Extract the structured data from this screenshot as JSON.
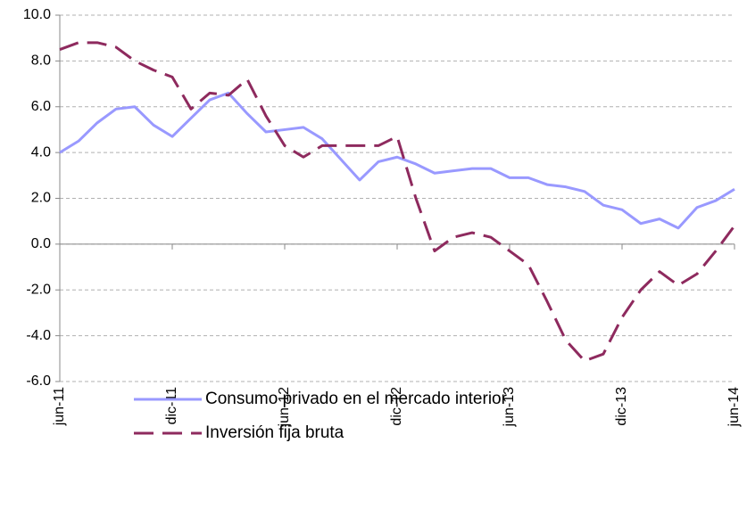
{
  "chart_data": {
    "type": "line",
    "categories": [
      "jun-11",
      null,
      null,
      null,
      null,
      null,
      "dic-11",
      null,
      null,
      null,
      null,
      null,
      "jun-12",
      null,
      null,
      null,
      null,
      null,
      "dic-12",
      null,
      null,
      null,
      null,
      null,
      "jun-13",
      null,
      null,
      null,
      null,
      null,
      "dic-13",
      null,
      null,
      null,
      null,
      null,
      "jun-14"
    ],
    "series": [
      {
        "name": "Consumo privado en el mercado interior",
        "color": "#9999ff",
        "dash": false,
        "values": [
          4.0,
          4.5,
          5.3,
          5.9,
          6.0,
          5.2,
          4.7,
          5.5,
          6.3,
          6.6,
          5.7,
          4.9,
          5.0,
          5.1,
          4.6,
          3.7,
          2.8,
          3.6,
          3.8,
          3.5,
          3.1,
          3.2,
          3.3,
          3.3,
          2.9,
          2.9,
          2.6,
          2.5,
          2.3,
          1.7,
          1.5,
          0.9,
          1.1,
          0.7,
          1.6,
          1.9,
          2.4
        ]
      },
      {
        "name": "Inversión fija bruta",
        "color": "#8e2a5e",
        "dash": true,
        "values": [
          8.5,
          8.8,
          8.8,
          8.6,
          8.0,
          7.6,
          7.3,
          5.9,
          6.6,
          6.5,
          7.2,
          5.6,
          4.3,
          3.8,
          4.3,
          4.3,
          4.3,
          4.3,
          4.7,
          2.0,
          -0.3,
          0.3,
          0.5,
          0.3,
          -0.3,
          -0.9,
          -2.5,
          -4.2,
          -5.1,
          -4.8,
          -3.2,
          -2.0,
          -1.2,
          -1.8,
          -1.3,
          -0.3,
          0.8
        ]
      }
    ],
    "ylim": [
      -6,
      10
    ],
    "yticks": [
      {
        "value": -6,
        "label": "-6.0"
      },
      {
        "value": -4,
        "label": "-4.0"
      },
      {
        "value": -2,
        "label": "-2.0"
      },
      {
        "value": 0,
        "label": "0.0"
      },
      {
        "value": 2,
        "label": "2.0"
      },
      {
        "value": 4,
        "label": "4.0"
      },
      {
        "value": 6,
        "label": "6.0"
      },
      {
        "value": 8,
        "label": "8.0"
      },
      {
        "value": 10,
        "label": "10.0"
      }
    ],
    "grid": true
  }
}
